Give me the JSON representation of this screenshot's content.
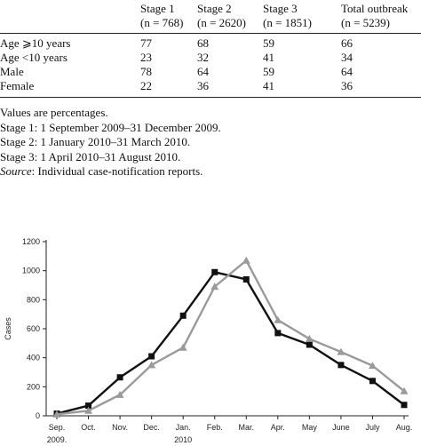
{
  "table": {
    "columns": [
      {
        "line1": "Stage 1",
        "line2": "(n = 768)"
      },
      {
        "line1": "Stage 2",
        "line2": "(n = 2620)"
      },
      {
        "line1": "Stage 3",
        "line2": "(n = 1851)"
      },
      {
        "line1": "Total outbreak",
        "line2": "(n = 5239)"
      }
    ],
    "rows": [
      {
        "label": "Age ⩾10 years",
        "values": [
          "77",
          "68",
          "59",
          "66"
        ]
      },
      {
        "label": "Age <10 years",
        "values": [
          "23",
          "32",
          "41",
          "34"
        ]
      },
      {
        "label": "Male",
        "values": [
          "78",
          "64",
          "59",
          "64"
        ]
      },
      {
        "label": "Female",
        "values": [
          "22",
          "36",
          "41",
          "36"
        ]
      }
    ],
    "notes": [
      "Values are percentages.",
      "Stage 1: 1 September 2009–31 December 2009.",
      "Stage 2: 1 January 2010–31 March 2010.",
      "Stage 3: 1 April 2010–31 August 2010."
    ],
    "source_label": "Source",
    "source_text": ": Individual case-notification reports."
  },
  "chart_data": {
    "type": "line",
    "ylabel": "Cases",
    "ylim": [
      0,
      1200
    ],
    "yticks": [
      "0",
      "200",
      "400",
      "600",
      "800",
      "1000",
      "1200"
    ],
    "categories": [
      "Sep.",
      "Oct.",
      "Nov.",
      "Dec.",
      "Jan.",
      "Feb.",
      "Mar.",
      "Apr.",
      "May",
      "June",
      "July",
      "Aug."
    ],
    "year_labels": [
      {
        "index": 0,
        "label": "2009."
      },
      {
        "index": 4,
        "label": "2010"
      }
    ],
    "series": [
      {
        "values": [
          15,
          70,
          265,
          410,
          690,
          990,
          940,
          570,
          490,
          350,
          240,
          75
        ],
        "color": "#111111",
        "marker": "square"
      },
      {
        "values": [
          10,
          35,
          145,
          350,
          470,
          890,
          1070,
          660,
          530,
          440,
          345,
          170
        ],
        "color": "#9a9a9a",
        "marker": "triangle"
      }
    ]
  }
}
